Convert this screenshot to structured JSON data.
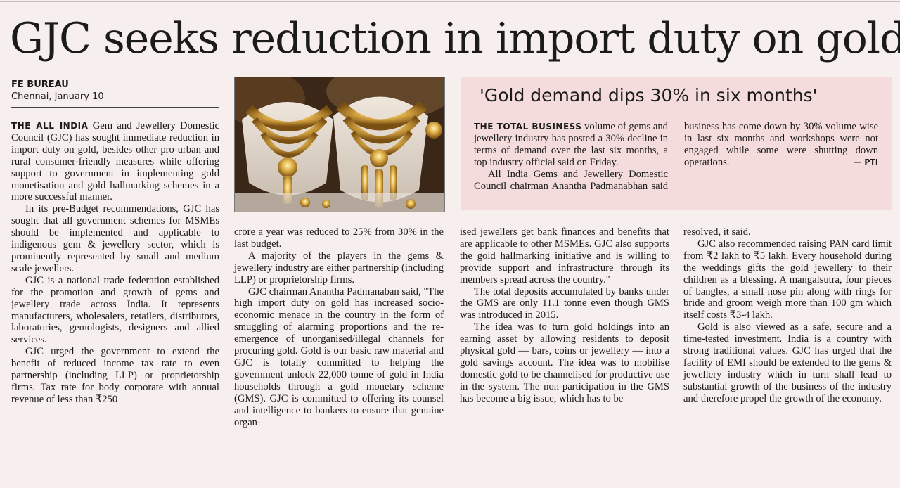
{
  "headline": "GJC seeks reduction in import duty on gold",
  "byline": {
    "bureau": "FE BUREAU",
    "dateline": "Chennai, January 10"
  },
  "photo": {
    "icon": "gold-jewellery-photo"
  },
  "sidebar": {
    "title": "'Gold demand dips 30% in six months'",
    "lead": "THE TOTAL BUSINESS",
    "p1": "volume of gems and jewellery industry has posted a 30% decline in terms of demand over the last six months, a top industry official said on Friday.",
    "p2": "All India Gems and Jewellery Domestic Council chairman Anantha Padmanabhan said business has come down by 30% volume wise in last six months and workshops were not engaged while some were shutting down operations.",
    "credit": "— PTI"
  },
  "article": {
    "lead": "THE ALL INDIA",
    "p1": "Gem and Jewellery Domestic Council (GJC) has sought immediate reduction in import duty on gold, besides other pro-urban and rural consumer-friendly measures while offering support to government in implementing gold monetisation and gold hallmarking schemes in a more successful manner.",
    "p2": "In its pre-Budget recommendations, GJC has sought that all government schemes for MSMEs should be implemented and applicable to indigenous gem & jewellery sector, which is prominently represented by small and medium scale jewellers.",
    "p3": "GJC is a national trade federation established for the promotion and growth of gems and jewellery trade across India. It represents manufacturers, wholesalers, retailers, distributors, laboratories, gemologists, designers and allied services.",
    "p4": "GJC urged the government to extend the benefit of reduced income tax rate to even partnership (including LLP) or proprietorship firms. Tax rate for body corporate with annual revenue of less than ₹250",
    "p5": "crore a year was reduced to 25% from 30% in the last budget.",
    "p6": "A majority of the players in the gems & jewellery industry are either partnership (including LLP) or proprietorship firms.",
    "p7": "GJC chairman Anantha Padmanaban said, \"The high import duty on gold has increased socio-economic menace in the country in the form of smuggling of alarming proportions and the re-emergence of unorganised/illegal channels for procuring gold. Gold is our basic raw material and GJC is totally committed to helping the government unlock 22,000 tonne of gold in India households through a gold monetary scheme (GMS). GJC is committed to offering its counsel and intelligence to bankers to ensure that genuine organ-",
    "p8": "ised jewellers get bank finances and benefits that are applicable to other MSMEs. GJC also supports the gold hallmarking initiative and is willing to provide support and infrastructure through its members spread across the country.\"",
    "p9": "The total deposits accumulated by banks under the GMS are only 11.1 tonne even though GMS was introduced in 2015.",
    "p10": "The idea was to turn gold holdings into an earning asset by allowing residents to deposit physical gold — bars, coins or jewellery — into a gold savings account. The idea was to mobilise domestic gold to be channelised for productive use in the system. The non-participation in the GMS has become a big issue, which has to be",
    "p11": "resolved, it said.",
    "p12": "GJC also recommended raising PAN card limit from ₹2 lakh to ₹5 lakh. Every household during the weddings gifts the gold jewellery to their children as a blessing. A mangalsutra, four pieces of bangles, a small nose pin along with rings for bride and groom weigh more than 100 gm which itself costs ₹3-4 lakh.",
    "p13": "Gold is also viewed as a safe, secure and a time-tested investment. India is a country with strong traditional values. GJC has urged that the facility of EMI should be extended to the gems & jewellery industry which in turn shall lead to substantial growth of the business of the industry and therefore propel the growth of the economy."
  }
}
